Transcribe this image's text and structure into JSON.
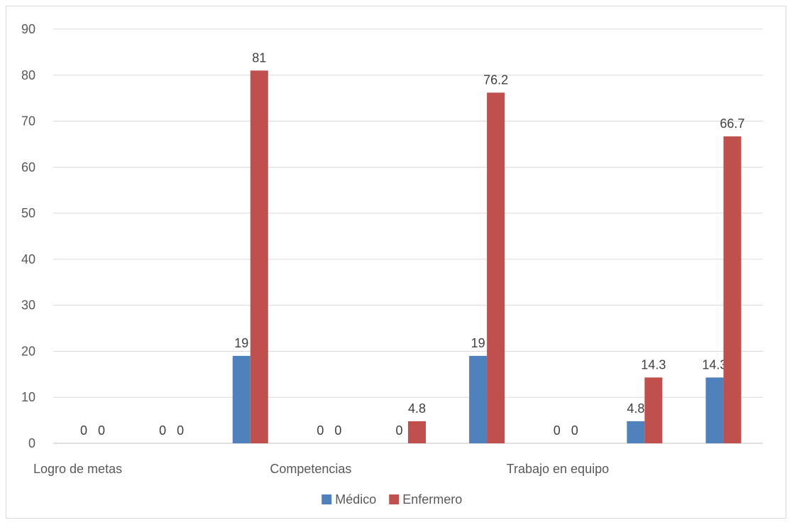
{
  "chart_data": {
    "type": "bar",
    "title": "",
    "xlabel": "",
    "ylabel": "",
    "ylim": [
      0,
      90
    ],
    "ytick_step": 10,
    "grid": true,
    "legend_position": "bottom",
    "groups": [
      {
        "label": "Logro de metas"
      },
      {
        "label": ""
      },
      {
        "label": ""
      },
      {
        "label": "Competencias"
      },
      {
        "label": ""
      },
      {
        "label": ""
      },
      {
        "label": "Trabajo en equipo"
      },
      {
        "label": ""
      },
      {
        "label": ""
      }
    ],
    "series": [
      {
        "name": "Médico",
        "color": "#4F81BD",
        "values": [
          0,
          0,
          19,
          0,
          0,
          19,
          0,
          4.8,
          14.3
        ]
      },
      {
        "name": "Enfermero",
        "color": "#C0504D",
        "values": [
          0,
          0,
          81,
          0,
          4.8,
          76.2,
          0,
          14.3,
          66.7
        ]
      }
    ]
  }
}
